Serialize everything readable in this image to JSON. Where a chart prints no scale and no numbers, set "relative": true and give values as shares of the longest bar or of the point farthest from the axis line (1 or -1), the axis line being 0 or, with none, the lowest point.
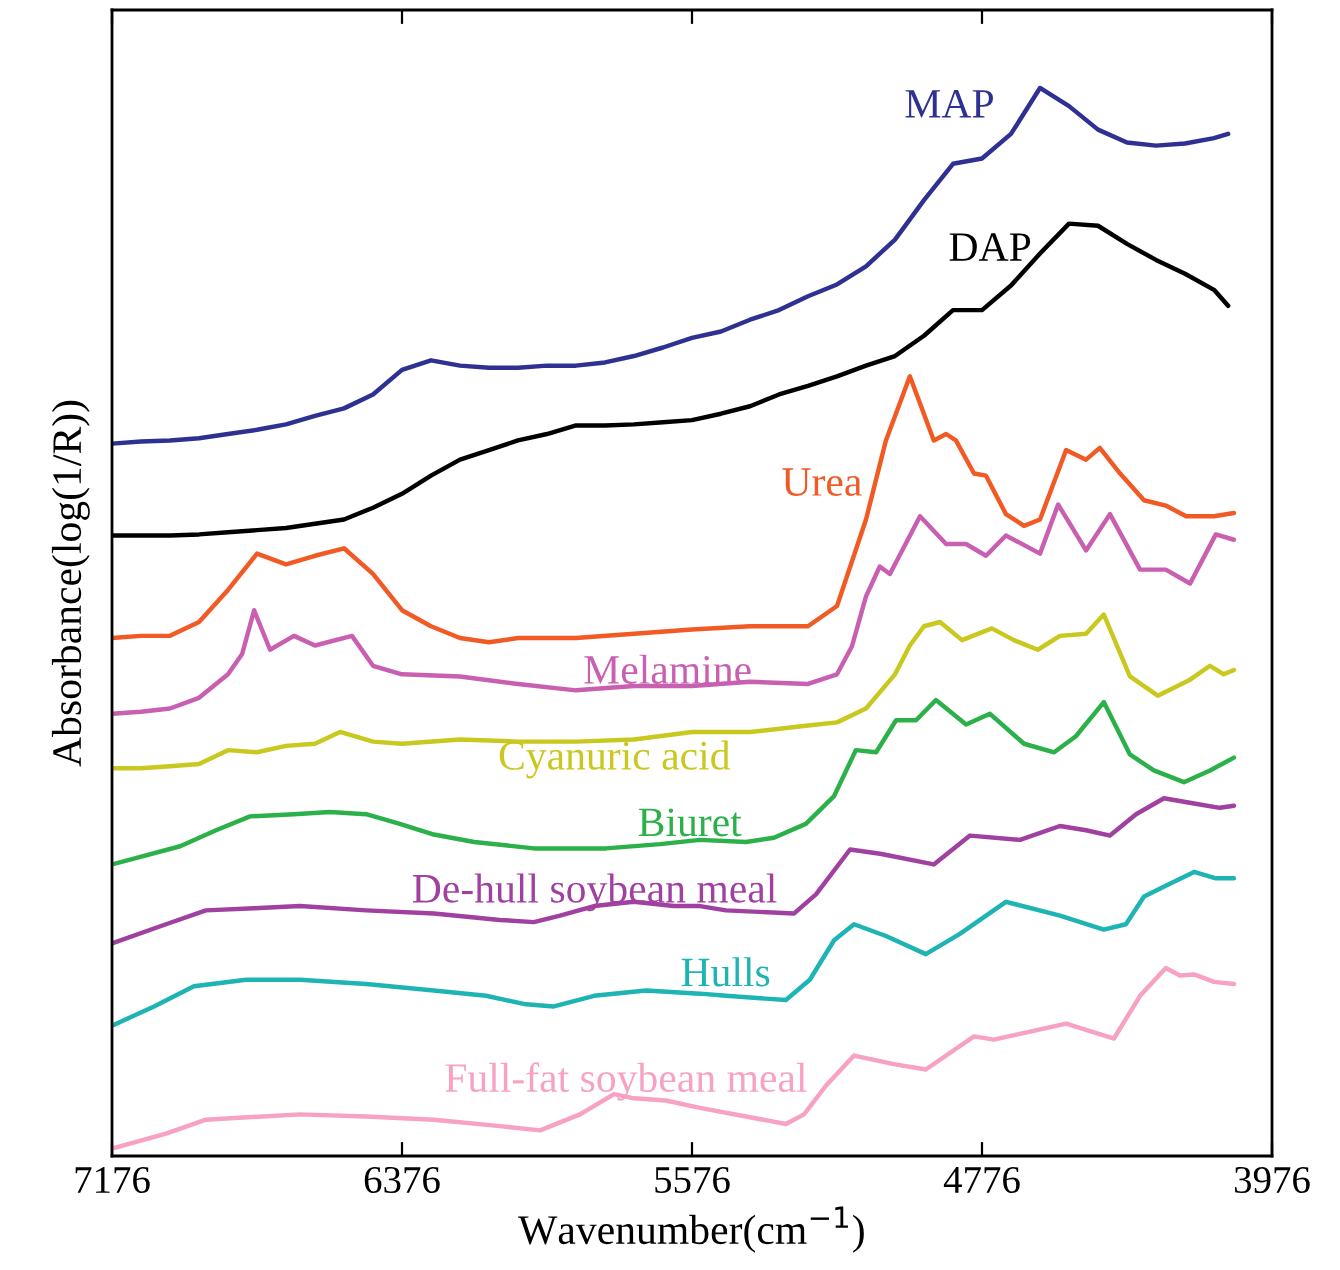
{
  "chart_data": {
    "type": "line",
    "relative": true,
    "xlabel": "Wavenumber(cm$^{−1}$)",
    "ylabel": "Absorbance(log(1/R))",
    "xlim": [
      7176,
      3976
    ],
    "xticks": [
      7176,
      6376,
      5576,
      4776,
      3976
    ],
    "series": [
      {
        "name": "MAP",
        "color": "#2e3192",
        "x": [
          7176,
          7096,
          7016,
          6936,
          6856,
          6776,
          6696,
          6616,
          6536,
          6456,
          6376,
          6296,
          6216,
          6136,
          6056,
          5976,
          5896,
          5816,
          5736,
          5656,
          5576,
          5496,
          5416,
          5336,
          5256,
          5176,
          5096,
          5016,
          4936,
          4856,
          4776,
          4696,
          4616,
          4536,
          4456,
          4376,
          4296,
          4216,
          4136,
          4097
        ],
        "values": [
          0.667,
          0.669,
          0.67,
          0.672,
          0.676,
          0.68,
          0.685,
          0.693,
          0.7,
          0.713,
          0.736,
          0.745,
          0.74,
          0.738,
          0.738,
          0.74,
          0.74,
          0.743,
          0.749,
          0.757,
          0.766,
          0.772,
          0.783,
          0.792,
          0.805,
          0.816,
          0.833,
          0.858,
          0.895,
          0.929,
          0.934,
          0.957,
          1.0,
          0.983,
          0.961,
          0.949,
          0.946,
          0.948,
          0.953,
          0.957
        ]
      },
      {
        "name": "DAP",
        "color": "#000000",
        "x": [
          7176,
          7096,
          7016,
          6936,
          6856,
          6776,
          6696,
          6616,
          6536,
          6456,
          6376,
          6296,
          6216,
          6136,
          6056,
          5976,
          5896,
          5816,
          5736,
          5656,
          5576,
          5496,
          5416,
          5336,
          5256,
          5176,
          5096,
          5016,
          4936,
          4856,
          4776,
          4696,
          4616,
          4536,
          4456,
          4376,
          4296,
          4216,
          4136,
          4097
        ],
        "values": [
          0.581,
          0.581,
          0.581,
          0.582,
          0.584,
          0.586,
          0.588,
          0.592,
          0.596,
          0.607,
          0.62,
          0.637,
          0.652,
          0.661,
          0.67,
          0.676,
          0.684,
          0.684,
          0.685,
          0.687,
          0.689,
          0.695,
          0.702,
          0.713,
          0.721,
          0.73,
          0.74,
          0.749,
          0.768,
          0.792,
          0.792,
          0.815,
          0.845,
          0.873,
          0.871,
          0.854,
          0.839,
          0.826,
          0.811,
          0.796
        ]
      },
      {
        "name": "Urea",
        "color": "#f15a24",
        "x": [
          7176,
          7096,
          7016,
          6936,
          6856,
          6776,
          6696,
          6616,
          6536,
          6456,
          6376,
          6296,
          6216,
          6136,
          6056,
          5896,
          5736,
          5576,
          5416,
          5256,
          5176,
          5096,
          5041,
          4975,
          4909,
          4875,
          4848,
          4798,
          4765,
          4710,
          4660,
          4616,
          4544,
          4489,
          4451,
          4395,
          4329,
          4269,
          4213,
          4136,
          4081
        ],
        "values": [
          0.485,
          0.487,
          0.487,
          0.5,
          0.53,
          0.564,
          0.554,
          0.562,
          0.569,
          0.545,
          0.511,
          0.496,
          0.485,
          0.481,
          0.485,
          0.485,
          0.489,
          0.493,
          0.496,
          0.496,
          0.515,
          0.596,
          0.67,
          0.73,
          0.67,
          0.676,
          0.67,
          0.639,
          0.637,
          0.601,
          0.59,
          0.596,
          0.661,
          0.652,
          0.663,
          0.639,
          0.614,
          0.609,
          0.599,
          0.599,
          0.602
        ]
      },
      {
        "name": "Melamine",
        "color": "#c95fb0",
        "x": [
          7176,
          7096,
          7016,
          6936,
          6856,
          6817,
          6784,
          6740,
          6674,
          6616,
          6514,
          6456,
          6376,
          6216,
          6056,
          5896,
          5736,
          5576,
          5416,
          5256,
          5176,
          5135,
          5096,
          5058,
          5030,
          4947,
          4875,
          4820,
          4765,
          4710,
          4616,
          4566,
          4489,
          4423,
          4340,
          4269,
          4202,
          4131,
          4081
        ],
        "values": [
          0.414,
          0.416,
          0.419,
          0.429,
          0.451,
          0.47,
          0.511,
          0.474,
          0.487,
          0.478,
          0.487,
          0.459,
          0.451,
          0.449,
          0.442,
          0.436,
          0.44,
          0.44,
          0.444,
          0.442,
          0.451,
          0.477,
          0.524,
          0.552,
          0.545,
          0.599,
          0.573,
          0.573,
          0.562,
          0.581,
          0.564,
          0.61,
          0.567,
          0.601,
          0.549,
          0.549,
          0.536,
          0.582,
          0.577
        ]
      },
      {
        "name": "Cyanuric acid",
        "color": "#c8c81e",
        "x": [
          7176,
          7096,
          7016,
          6936,
          6856,
          6776,
          6696,
          6616,
          6547,
          6456,
          6376,
          6216,
          6056,
          5896,
          5736,
          5576,
          5416,
          5256,
          5176,
          5096,
          5016,
          4975,
          4936,
          4892,
          4831,
          4749,
          4688,
          4622,
          4561,
          4489,
          4440,
          4368,
          4291,
          4202,
          4147,
          4109,
          4081
        ],
        "values": [
          0.363,
          0.363,
          0.365,
          0.367,
          0.38,
          0.378,
          0.384,
          0.386,
          0.397,
          0.388,
          0.386,
          0.39,
          0.388,
          0.388,
          0.39,
          0.397,
          0.397,
          0.403,
          0.406,
          0.419,
          0.451,
          0.478,
          0.496,
          0.5,
          0.483,
          0.494,
          0.483,
          0.474,
          0.487,
          0.489,
          0.507,
          0.449,
          0.431,
          0.446,
          0.459,
          0.451,
          0.455
        ]
      },
      {
        "name": "Biuret",
        "color": "#2bb04a",
        "x": [
          7176,
          6988,
          6889,
          6795,
          6674,
          6575,
          6475,
          6382,
          6288,
          6177,
          6012,
          5813,
          5664,
          5554,
          5427,
          5350,
          5262,
          5184,
          5124,
          5068,
          5013,
          4958,
          4903,
          4820,
          4754,
          4660,
          4577,
          4517,
          4440,
          4368,
          4302,
          4219,
          4147,
          4081
        ],
        "values": [
          0.273,
          0.29,
          0.305,
          0.318,
          0.32,
          0.322,
          0.32,
          0.311,
          0.301,
          0.294,
          0.288,
          0.288,
          0.292,
          0.296,
          0.294,
          0.298,
          0.311,
          0.337,
          0.38,
          0.378,
          0.408,
          0.408,
          0.427,
          0.404,
          0.414,
          0.386,
          0.378,
          0.393,
          0.425,
          0.376,
          0.361,
          0.35,
          0.361,
          0.373
        ]
      },
      {
        "name": "De-hull soybean meal",
        "color": "#a040a0",
        "x": [
          7176,
          7027,
          6917,
          6784,
          6657,
          6475,
          6288,
          6106,
          6012,
          5940,
          5846,
          5736,
          5626,
          5554,
          5482,
          5295,
          5234,
          5140,
          5057,
          4909,
          4809,
          4671,
          4561,
          4489,
          4423,
          4351,
          4274,
          4191,
          4120,
          4081
        ],
        "values": [
          0.199,
          0.217,
          0.23,
          0.232,
          0.234,
          0.23,
          0.227,
          0.221,
          0.219,
          0.225,
          0.234,
          0.238,
          0.234,
          0.234,
          0.23,
          0.227,
          0.245,
          0.287,
          0.283,
          0.273,
          0.3,
          0.296,
          0.309,
          0.305,
          0.3,
          0.32,
          0.335,
          0.33,
          0.326,
          0.328
        ]
      },
      {
        "name": "Hulls",
        "color": "#1eb4b4",
        "x": [
          7176,
          7060,
          6950,
          6806,
          6657,
          6475,
          6288,
          6144,
          6034,
          5957,
          5846,
          5703,
          5554,
          5482,
          5317,
          5251,
          5184,
          5129,
          5041,
          4931,
          4837,
          4710,
          4561,
          4440,
          4379,
          4329,
          4269,
          4191,
          4131,
          4081
        ],
        "values": [
          0.122,
          0.14,
          0.159,
          0.165,
          0.165,
          0.161,
          0.155,
          0.15,
          0.142,
          0.14,
          0.15,
          0.155,
          0.152,
          0.15,
          0.146,
          0.165,
          0.202,
          0.217,
          0.206,
          0.189,
          0.208,
          0.238,
          0.225,
          0.212,
          0.217,
          0.243,
          0.253,
          0.266,
          0.26,
          0.26
        ]
      },
      {
        "name": "Full-fat soybean meal",
        "color": "#f7a1c4",
        "x": [
          7176,
          7027,
          6917,
          6657,
          6475,
          6288,
          6106,
          5995,
          5885,
          5791,
          5736,
          5648,
          5554,
          5317,
          5267,
          5206,
          5129,
          5019,
          4931,
          4798,
          4743,
          4544,
          4412,
          4340,
          4269,
          4230,
          4191,
          4136,
          4081
        ],
        "values": [
          0.007,
          0.021,
          0.034,
          0.039,
          0.037,
          0.034,
          0.028,
          0.024,
          0.039,
          0.058,
          0.054,
          0.052,
          0.045,
          0.03,
          0.039,
          0.066,
          0.094,
          0.086,
          0.081,
          0.112,
          0.109,
          0.124,
          0.11,
          0.15,
          0.176,
          0.169,
          0.17,
          0.163,
          0.161
        ]
      }
    ]
  }
}
